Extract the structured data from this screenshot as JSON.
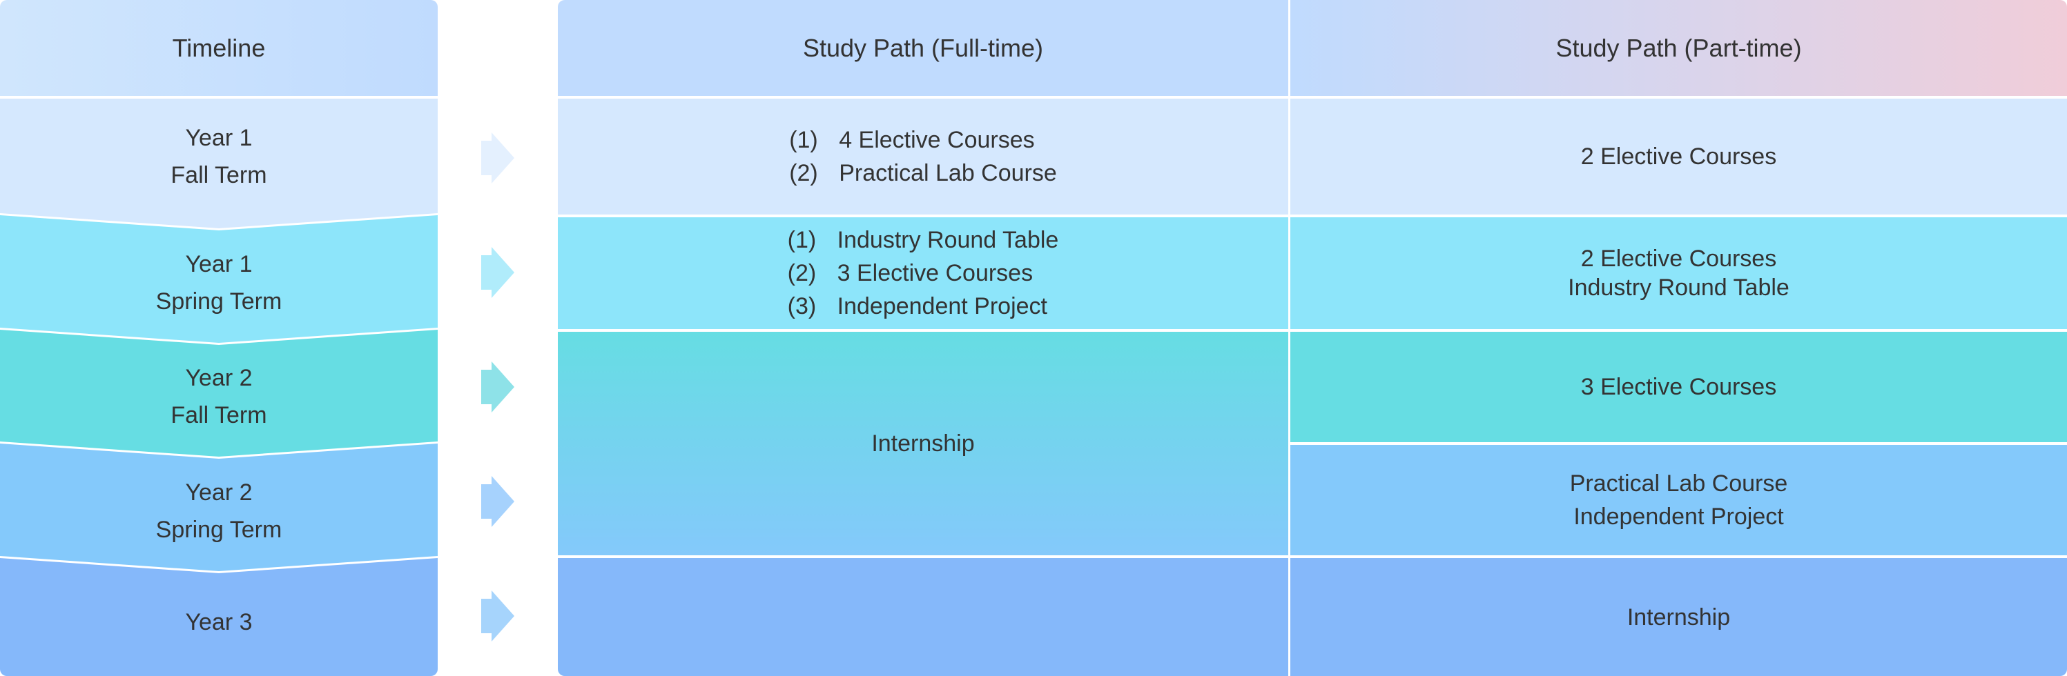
{
  "timeline": {
    "header": "Timeline",
    "rows": [
      {
        "year": "Year 1",
        "term": "Fall Term",
        "color": "#d5e8fe",
        "arrow_color": "#e4f0fe"
      },
      {
        "year": "Year 1",
        "term": "Spring Term",
        "color": "#8de5fa",
        "arrow_color": "#b0ecfb"
      },
      {
        "year": "Year 2",
        "term": "Fall Term",
        "color": "#66dde3",
        "arrow_color": "#8ee2e8"
      },
      {
        "year": "Year 2",
        "term": "Spring Term",
        "color": "#84c9fb",
        "arrow_color": "#a6d2fd"
      },
      {
        "year": "Year 3",
        "term": "",
        "color": "#85b8fa",
        "arrow_color": "#a6d4fc"
      }
    ]
  },
  "full_time": {
    "header": "Study Path (Full-time)",
    "rows": [
      {
        "items": [
          {
            "num": "(1)",
            "text": "4 Elective Courses"
          },
          {
            "num": "(2)",
            "text": "Practical Lab Course"
          }
        ]
      },
      {
        "items": [
          {
            "num": "(1)",
            "text": "Industry Round Table"
          },
          {
            "num": "(2)",
            "text": "3 Elective Courses"
          },
          {
            "num": "(3)",
            "text": "Independent Project"
          }
        ]
      },
      {
        "text": "Internship"
      },
      {
        "text": ""
      }
    ]
  },
  "part_time": {
    "header": "Study Path (Part-time)",
    "rows": [
      {
        "lines": [
          "2 Elective Courses"
        ]
      },
      {
        "lines": [
          "2 Elective Courses",
          "Industry Round Table"
        ]
      },
      {
        "lines": [
          "3 Elective Courses"
        ]
      },
      {
        "lines": [
          "Practical Lab Course",
          "Independent Project"
        ]
      },
      {
        "lines": [
          "Internship"
        ]
      }
    ]
  }
}
